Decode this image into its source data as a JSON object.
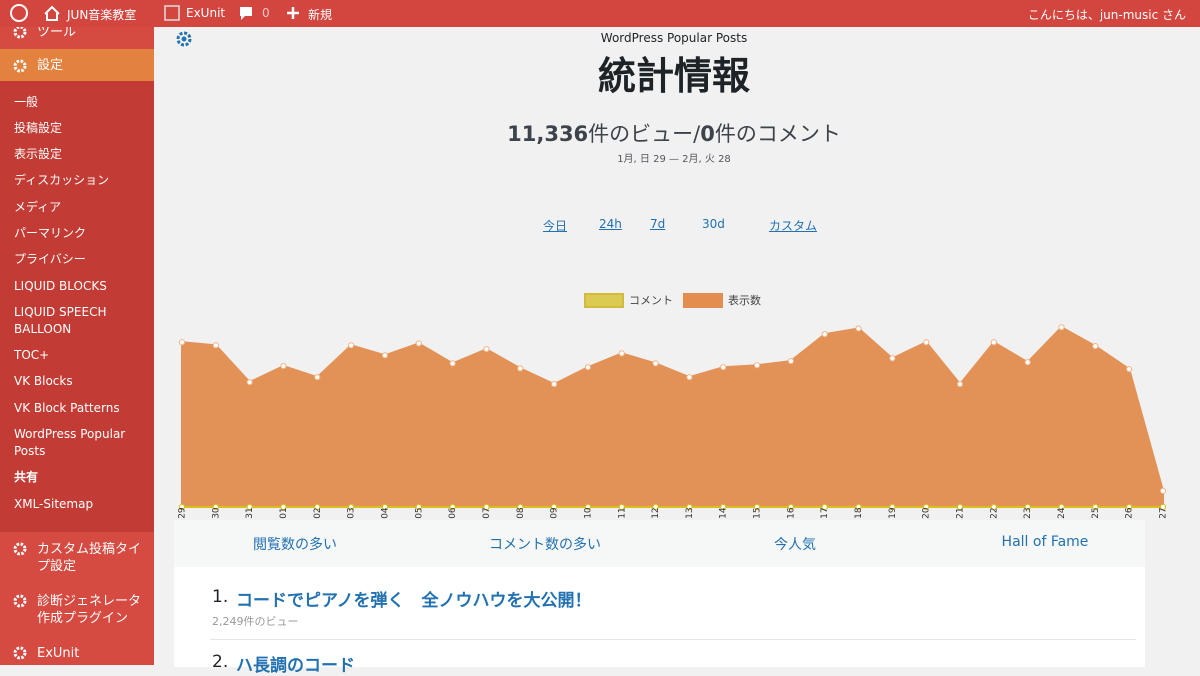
{
  "admin_bar": {
    "site": "JUN音楽教室",
    "exunit": "ExUnit",
    "comments": "0",
    "new": "新規",
    "greeting": "こんにちは、jun-music さん"
  },
  "sidebar": {
    "menu": [
      {
        "label": "ツール"
      },
      {
        "label": "設定",
        "active": true,
        "current": 13,
        "submenu": [
          "一般",
          "投稿設定",
          "表示設定",
          "ディスカッション",
          "メディア",
          "パーマリンク",
          "プライバシー",
          "LIQUID BLOCKS",
          "LIQUID SPEECH BALLOON",
          "TOC+",
          "VK Blocks",
          "VK Block Patterns",
          "WordPress Popular Posts",
          "共有",
          "XML-Sitemap"
        ]
      },
      {
        "label": "カスタム投稿タイプ設定"
      },
      {
        "label": "診断ジェネレータ作成プラグイン"
      },
      {
        "label": "ExUnit"
      }
    ]
  },
  "header": {
    "plugin": "WordPress Popular Posts",
    "title": "統計情報"
  },
  "summary": {
    "views": "11,336",
    "views_suffix": "件のビュー/",
    "comments": "0",
    "comments_suffix": "件のコメント",
    "range": "1月, 日 29 — 2月, 火 28"
  },
  "ranges": {
    "items": [
      "今日",
      "24h",
      "7d",
      "30d",
      "カスタム"
    ],
    "active": 3
  },
  "chart_data": {
    "type": "area",
    "categories": [
      "日 29",
      "月 30",
      "火 31",
      "水 01",
      "木 02",
      "金 03",
      "土 04",
      "日 05",
      "月 06",
      "火 07",
      "水 08",
      "木 09",
      "金 10",
      "土 11",
      "日 12",
      "月 13",
      "火 14",
      "水 15",
      "木 16",
      "金 17",
      "土 18",
      "日 19",
      "月 20",
      "火 21",
      "水 22",
      "木 23",
      "金 24",
      "土 25",
      "日 26",
      "月 27"
    ],
    "series": [
      {
        "name": "コメント",
        "color": "#d6bf1f",
        "values": [
          0,
          0,
          0,
          0,
          0,
          0,
          0,
          0,
          0,
          0,
          0,
          0,
          0,
          0,
          0,
          0,
          0,
          0,
          0,
          0,
          0,
          0,
          0,
          0,
          0,
          0,
          0,
          0,
          0,
          0
        ]
      },
      {
        "name": "表示数",
        "color": "#e38d4f",
        "values": [
          429,
          421,
          325,
          367,
          338,
          421,
          395,
          426,
          374,
          411,
          361,
          320,
          364,
          400,
          374,
          338,
          364,
          369,
          380,
          450,
          465,
          387,
          429,
          320,
          429,
          377,
          468,
          419,
          359,
          42
        ]
      }
    ],
    "ylim": [
      0,
      500
    ],
    "grid": false
  },
  "tabs": [
    "閲覧数の多い",
    "コメント数の多い",
    "今人気",
    "Hall of Fame"
  ],
  "list": [
    {
      "rank": "1.",
      "title": "コードでピアノを弾く　全ノウハウを大公開！",
      "views": "2,249件のビュー"
    },
    {
      "rank": "2.",
      "title": "ハ長調のコード"
    }
  ]
}
